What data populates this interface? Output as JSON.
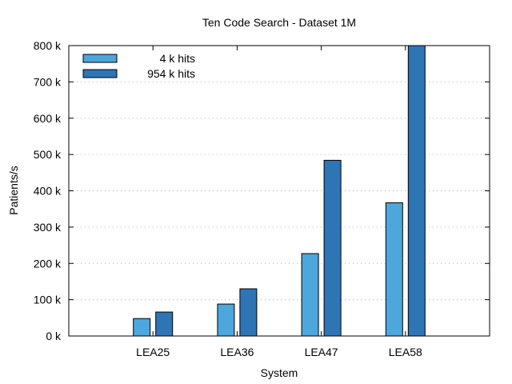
{
  "chart_data": {
    "type": "bar",
    "title": "Ten Code Search - Dataset 1M",
    "xlabel": "System",
    "ylabel": "Patients/s",
    "categories": [
      "LEA25",
      "LEA36",
      "LEA47",
      "LEA58"
    ],
    "series": [
      {
        "name": "4 k hits",
        "color": "#4da6dc",
        "values": [
          48000,
          88000,
          227000,
          367000
        ]
      },
      {
        "name": "954 k hits",
        "color": "#2e75b6",
        "values": [
          66000,
          130000,
          484000,
          800000
        ]
      }
    ],
    "ylim": [
      0,
      800000
    ],
    "yticks": [
      0,
      100000,
      200000,
      300000,
      400000,
      500000,
      600000,
      700000,
      800000
    ],
    "ytick_labels": [
      "0 k",
      "100 k",
      "200 k",
      "300 k",
      "400 k",
      "500 k",
      "600 k",
      "700 k",
      "800 k"
    ],
    "grid": "horizontal dotted",
    "legend_position": "top-left"
  }
}
